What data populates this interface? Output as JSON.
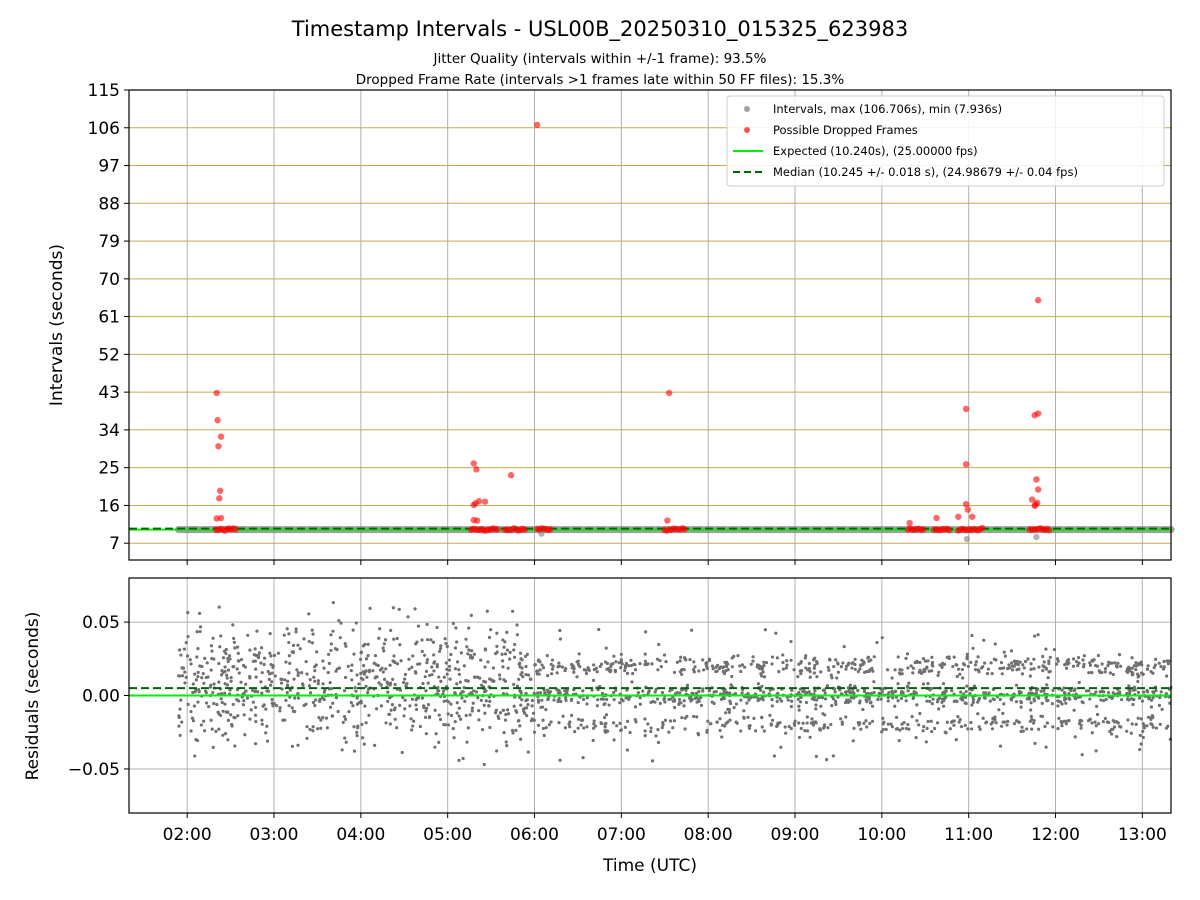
{
  "colors": {
    "background": "#ffffff",
    "grid": "#b0b0b0",
    "hgrid_top": "#c8a850",
    "intervals": "#808080",
    "dropped": "#ff0000",
    "expected": "#00ee00",
    "median": "#006400",
    "residual_points": "#707070"
  },
  "chart_data": [
    {
      "type": "scatter",
      "title": "Timestamp Intervals - USL00B_20250310_015325_623983",
      "subtitle_lines": [
        "Jitter Quality (intervals within +/-1 frame): 93.5%",
        "Dropped Frame Rate (intervals >1 frames late within 50 FF files): 15.3%"
      ],
      "xlabel": "",
      "ylabel": "Intervals (seconds)",
      "ylim": [
        3,
        115
      ],
      "yticks": [
        7,
        16,
        25,
        34,
        43,
        52,
        61,
        70,
        79,
        88,
        97,
        106,
        115
      ],
      "xlim_hours": [
        1.33,
        13.33
      ],
      "grid": true,
      "legend_position": "upper right",
      "legend": [
        {
          "label": "Intervals, max (106.706s), min (7.936s)",
          "marker": "dot",
          "color": "#a0a0a0"
        },
        {
          "label": "Possible Dropped Frames",
          "marker": "dot",
          "color": "#ff5050"
        },
        {
          "label": "Expected (10.240s), (25.00000 fps)",
          "marker": "line",
          "color": "#00ee00"
        },
        {
          "label": "Median (10.245 +/- 0.018 s), (24.98679 +/- 0.04 fps)",
          "marker": "dashed",
          "color": "#006400"
        }
      ],
      "expected": 10.24,
      "median": 10.245,
      "series": [
        {
          "name": "Intervals, max (106.706s), min (7.936s)",
          "x_range_hours": [
            1.9,
            13.33
          ],
          "y_level": 10.24,
          "outliers": [
            {
              "x": 6.08,
              "y": 9.3
            },
            {
              "x": 10.98,
              "y": 8.0
            },
            {
              "x": 11.78,
              "y": 8.5
            }
          ]
        },
        {
          "name": "Possible Dropped Frames",
          "clusters": [
            {
              "x_range": [
                2.33,
                2.58
              ],
              "y": 10.3
            },
            {
              "x_range": [
                5.27,
                5.58
              ],
              "y": 10.3
            },
            {
              "x_range": [
                5.66,
                5.9
              ],
              "y": 10.3
            },
            {
              "x_range": [
                6.03,
                6.2
              ],
              "y": 10.3
            },
            {
              "x_range": [
                7.5,
                7.75
              ],
              "y": 10.3
            },
            {
              "x_range": [
                10.3,
                10.48
              ],
              "y": 10.3
            },
            {
              "x_range": [
                10.6,
                10.8
              ],
              "y": 10.3
            },
            {
              "x_range": [
                10.88,
                11.17
              ],
              "y": 10.3
            },
            {
              "x_range": [
                11.7,
                11.95
              ],
              "y": 10.3
            }
          ],
          "points": [
            {
              "x": 2.34,
              "y": 42.8
            },
            {
              "x": 2.35,
              "y": 36.3
            },
            {
              "x": 2.39,
              "y": 32.4
            },
            {
              "x": 2.36,
              "y": 30.1
            },
            {
              "x": 2.38,
              "y": 19.5
            },
            {
              "x": 2.37,
              "y": 17.7
            },
            {
              "x": 2.34,
              "y": 12.9
            },
            {
              "x": 2.39,
              "y": 13.0
            },
            {
              "x": 5.3,
              "y": 26.0
            },
            {
              "x": 5.33,
              "y": 24.6
            },
            {
              "x": 5.43,
              "y": 16.9
            },
            {
              "x": 5.36,
              "y": 17.0
            },
            {
              "x": 5.32,
              "y": 16.5
            },
            {
              "x": 5.3,
              "y": 16.1
            },
            {
              "x": 5.3,
              "y": 12.5
            },
            {
              "x": 5.34,
              "y": 12.4
            },
            {
              "x": 5.73,
              "y": 23.2
            },
            {
              "x": 6.03,
              "y": 106.7
            },
            {
              "x": 7.55,
              "y": 42.8
            },
            {
              "x": 7.53,
              "y": 12.4
            },
            {
              "x": 10.32,
              "y": 11.8
            },
            {
              "x": 10.63,
              "y": 13.0
            },
            {
              "x": 10.88,
              "y": 13.3
            },
            {
              "x": 10.97,
              "y": 39.0
            },
            {
              "x": 10.97,
              "y": 25.8
            },
            {
              "x": 10.97,
              "y": 16.3
            },
            {
              "x": 10.99,
              "y": 15.0
            },
            {
              "x": 11.04,
              "y": 13.3
            },
            {
              "x": 11.8,
              "y": 64.9
            },
            {
              "x": 11.76,
              "y": 37.5
            },
            {
              "x": 11.8,
              "y": 37.9
            },
            {
              "x": 11.78,
              "y": 22.2
            },
            {
              "x": 11.8,
              "y": 19.8
            },
            {
              "x": 11.73,
              "y": 17.4
            },
            {
              "x": 11.77,
              "y": 16.2
            },
            {
              "x": 11.76,
              "y": 15.9
            },
            {
              "x": 11.79,
              "y": 16.6
            }
          ]
        }
      ]
    },
    {
      "type": "scatter",
      "xlabel": "Time (UTC)",
      "ylabel": "Residuals (seconds)",
      "ylim": [
        -0.08,
        0.08
      ],
      "yticks": [
        -0.05,
        0.0,
        0.05
      ],
      "ytick_labels": [
        "−0.05",
        "0.00",
        "0.05"
      ],
      "xlim_hours": [
        1.33,
        13.33
      ],
      "xticks_hours": [
        2,
        3,
        4,
        5,
        6,
        7,
        8,
        9,
        10,
        11,
        12,
        13
      ],
      "xtick_labels": [
        "02:00",
        "03:00",
        "04:00",
        "05:00",
        "06:00",
        "07:00",
        "08:00",
        "09:00",
        "10:00",
        "11:00",
        "12:00",
        "13:00"
      ],
      "grid": true,
      "expected_residual": 0.0,
      "median_residual": 0.005,
      "residuals": {
        "x_range_hours": [
          1.9,
          13.33
        ],
        "phase1": {
          "x_range": [
            1.9,
            6.0
          ],
          "spread": 0.02,
          "range": [
            -0.049,
            0.067
          ]
        },
        "phase2": {
          "x_range": [
            6.0,
            13.33
          ],
          "bands": [
            -0.02,
            0.0,
            0.02
          ],
          "range": [
            -0.05,
            0.05
          ]
        }
      }
    }
  ]
}
